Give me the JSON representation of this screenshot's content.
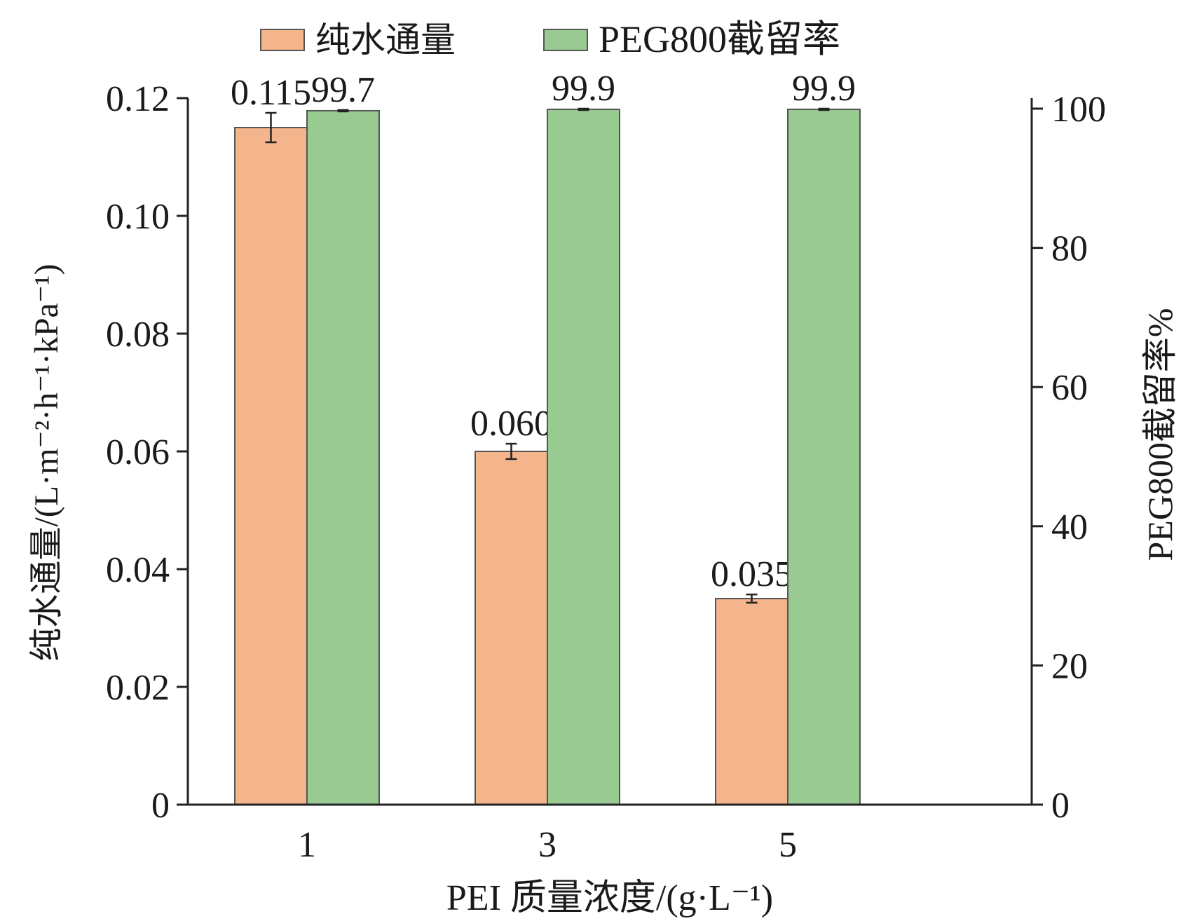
{
  "chart_data": {
    "type": "bar",
    "categories": [
      "1",
      "3",
      "5"
    ],
    "xlabel": "PEI 质量浓度/(g·L⁻¹)",
    "ylabel_left": "纯水通量/(L·m⁻²·h⁻¹·kPa⁻¹)",
    "ylabel_right": "PEG800截留率%",
    "ylim_left": [
      0,
      0.12
    ],
    "ylim_right": [
      0,
      100
    ],
    "yticks_left": [
      "0",
      "0.02",
      "0.04",
      "0.06",
      "0.08",
      "0.10",
      "0.12"
    ],
    "yticks_right": [
      "0",
      "20",
      "40",
      "60",
      "80",
      "100"
    ],
    "legend_position": "top",
    "series": [
      {
        "name": "纯水通量",
        "axis": "left",
        "color": "#F4B48C",
        "values": [
          0.115,
          0.06,
          0.035
        ],
        "labels": [
          "0.115",
          "0.060",
          "0.035"
        ],
        "errors": [
          0.0025,
          0.0013,
          0.0007
        ]
      },
      {
        "name": "PEG800截留率",
        "axis": "right",
        "color": "#98CA92",
        "values": [
          99.7,
          99.9,
          99.9
        ],
        "labels": [
          "99.7",
          "99.9",
          "99.9"
        ],
        "errors": [
          0.1,
          0.1,
          0.1
        ]
      }
    ]
  }
}
